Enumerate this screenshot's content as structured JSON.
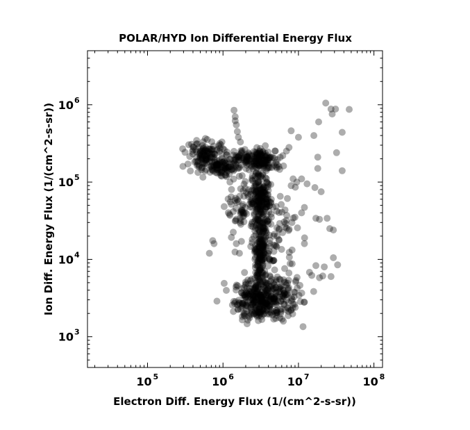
{
  "chart_data": {
    "type": "scatter",
    "title": "POLAR/HYD  Ion Differential Energy Flux",
    "xlabel": "Electron Diff. Energy Flux (1/(cm^2-s-sr))",
    "ylabel": "Ion Diff. Energy Flux (1/(cm^2-s-sr))",
    "xscale": "log",
    "yscale": "log",
    "xlim": [
      16000,
      130000000
    ],
    "ylim": [
      400,
      5000000
    ],
    "xticks": [
      {
        "base": "10",
        "exp": "5",
        "value": 100000
      },
      {
        "base": "10",
        "exp": "6",
        "value": 1000000
      },
      {
        "base": "10",
        "exp": "7",
        "value": 10000000
      },
      {
        "base": "10",
        "exp": "8",
        "value": 100000000
      }
    ],
    "yticks": [
      {
        "base": "10",
        "exp": "3",
        "value": 1000
      },
      {
        "base": "10",
        "exp": "4",
        "value": 10000
      },
      {
        "base": "10",
        "exp": "5",
        "value": 100000
      },
      {
        "base": "10",
        "exp": "6",
        "value": 1000000
      }
    ],
    "grid": false,
    "legend": "none",
    "marker_color": "#000000",
    "marker_alpha": 0.32,
    "points": [
      [
        23000000,
        1050000
      ],
      [
        27000000,
        880000
      ],
      [
        31000000,
        880000
      ],
      [
        47000000,
        870000
      ],
      [
        18500000,
        600000
      ],
      [
        16000000,
        400000
      ],
      [
        8000000,
        460000
      ],
      [
        10000000,
        380000
      ],
      [
        38000000,
        440000
      ],
      [
        28000000,
        760000
      ],
      [
        32000000,
        240000
      ],
      [
        18000000,
        210000
      ],
      [
        38000000,
        140000
      ],
      [
        18000000,
        150000
      ],
      [
        11000000,
        110000
      ],
      [
        13000000,
        95000
      ],
      [
        16500000,
        85000
      ],
      [
        20000000,
        75000
      ],
      [
        7500000,
        280000
      ],
      [
        8500000,
        110000
      ],
      [
        9500000,
        100000
      ],
      [
        8000000,
        90000
      ],
      [
        12000000,
        47000
      ],
      [
        11000000,
        40000
      ],
      [
        17000000,
        34000
      ],
      [
        19000000,
        33000
      ],
      [
        26000000,
        25000
      ],
      [
        29000000,
        24000
      ],
      [
        24000000,
        34000
      ],
      [
        12000000,
        16000
      ],
      [
        29000000,
        10500
      ],
      [
        33000000,
        8500
      ],
      [
        22000000,
        8000
      ],
      [
        17000000,
        8300
      ],
      [
        14000000,
        6800
      ],
      [
        15000000,
        6200
      ],
      [
        19000000,
        5800
      ],
      [
        21000000,
        6100
      ],
      [
        27000000,
        6000
      ],
      [
        12000000,
        2800
      ],
      [
        11500000,
        1350
      ],
      [
        660000,
        12000
      ],
      [
        730000,
        17500
      ],
      [
        760000,
        16000
      ],
      [
        1500000,
        16000
      ],
      [
        2700000,
        8500
      ],
      [
        1650000,
        12000
      ],
      [
        1400000,
        850000
      ],
      [
        1450000,
        700000
      ],
      [
        1500000,
        550000
      ],
      [
        1550000,
        450000
      ],
      [
        1600000,
        380000
      ],
      [
        1700000,
        330000
      ],
      [
        1450000,
        620000
      ],
      [
        2800000,
        5000
      ],
      [
        3000000,
        12000
      ],
      [
        9000000,
        35000
      ],
      [
        5500000,
        18000
      ]
    ],
    "clusters": [
      {
        "cx": 3200000,
        "cy": 3000,
        "sx": 0.18,
        "sy": 0.13,
        "n": 330
      },
      {
        "cx": 3100000,
        "cy": 14000,
        "sx": 0.05,
        "sy": 0.32,
        "n": 200
      },
      {
        "cx": 3100000,
        "cy": 60000,
        "sx": 0.07,
        "sy": 0.16,
        "n": 170
      },
      {
        "cx": 600000,
        "cy": 230000,
        "sx": 0.13,
        "sy": 0.09,
        "n": 120
      },
      {
        "cx": 1000000,
        "cy": 155000,
        "sx": 0.13,
        "sy": 0.06,
        "n": 90
      },
      {
        "cx": 3300000,
        "cy": 190000,
        "sx": 0.13,
        "sy": 0.07,
        "n": 130
      },
      {
        "cx": 1700000,
        "cy": 45000,
        "sx": 0.09,
        "sy": 0.2,
        "n": 60
      },
      {
        "cx": 5000000,
        "cy": 20000,
        "sx": 0.14,
        "sy": 0.3,
        "n": 80
      },
      {
        "cx": 2000000,
        "cy": 210000,
        "sx": 0.14,
        "sy": 0.04,
        "n": 50
      },
      {
        "cx": 7000000,
        "cy": 3500,
        "sx": 0.1,
        "sy": 0.12,
        "n": 40
      }
    ]
  }
}
